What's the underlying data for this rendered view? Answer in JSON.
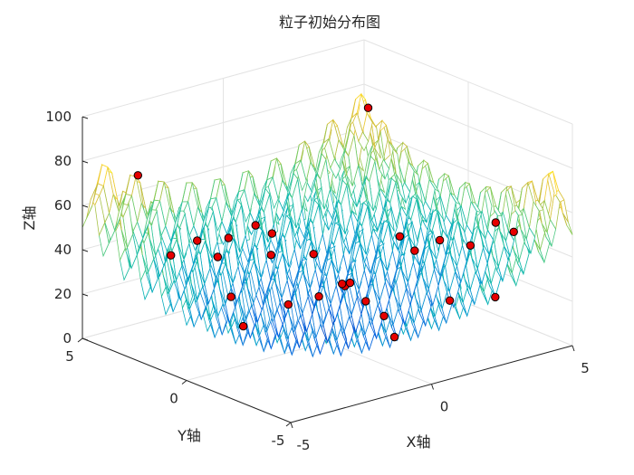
{
  "chart_data": {
    "type": "surface",
    "title": "粒子初始分布图",
    "xlabel": "X轴",
    "ylabel": "Y轴",
    "zlabel": "Z轴",
    "xlim": [
      -5,
      5
    ],
    "ylim": [
      -5,
      5
    ],
    "zlim": [
      0,
      100
    ],
    "x_ticks": [
      "-5",
      "0",
      "5"
    ],
    "y_ticks": [
      "-5",
      "0",
      "5"
    ],
    "z_ticks": [
      "0",
      "20",
      "40",
      "60",
      "80",
      "100"
    ],
    "grid": true,
    "function": "Rastrigin: z = 20 + x^2 + y^2 - 10cos(2πx) - 10cos(2πy)",
    "colormap": "parula",
    "particle_color": "#e60000",
    "particles": [
      {
        "x": -3.4,
        "y": 4.5
      },
      {
        "x": -2.7,
        "y": 2.6
      },
      {
        "x": -1.6,
        "y": 3.1
      },
      {
        "x": 1.0,
        "y": 4.8
      },
      {
        "x": 4.7,
        "y": 4.4
      },
      {
        "x": 4.1,
        "y": -3.4
      },
      {
        "x": -0.3,
        "y": 2.3
      },
      {
        "x": -0.7,
        "y": 3.8
      },
      {
        "x": 0.4,
        "y": 3.2
      },
      {
        "x": 1.8,
        "y": 3.1
      },
      {
        "x": 3.4,
        "y": -0.8
      },
      {
        "x": 2.1,
        "y": 1.0
      },
      {
        "x": 2.8,
        "y": -0.4
      },
      {
        "x": -3.8,
        "y": -1.1
      },
      {
        "x": -4.3,
        "y": 1.7
      },
      {
        "x": -1.3,
        "y": -2.6
      },
      {
        "x": -2.3,
        "y": -2.7
      },
      {
        "x": 0.9,
        "y": -2.0
      },
      {
        "x": 2.2,
        "y": -2.9
      },
      {
        "x": 3.0,
        "y": -4.0
      },
      {
        "x": 0.3,
        "y": -0.3
      },
      {
        "x": -3.2,
        "y": 0.3
      },
      {
        "x": 1.6,
        "y": -4.7
      },
      {
        "x": 4.2,
        "y": -2.4
      },
      {
        "x": 3.9,
        "y": 1.8
      },
      {
        "x": -4.2,
        "y": -3.8
      },
      {
        "x": 1.1,
        "y": 0.4
      },
      {
        "x": -0.8,
        "y": -3.8
      }
    ]
  }
}
